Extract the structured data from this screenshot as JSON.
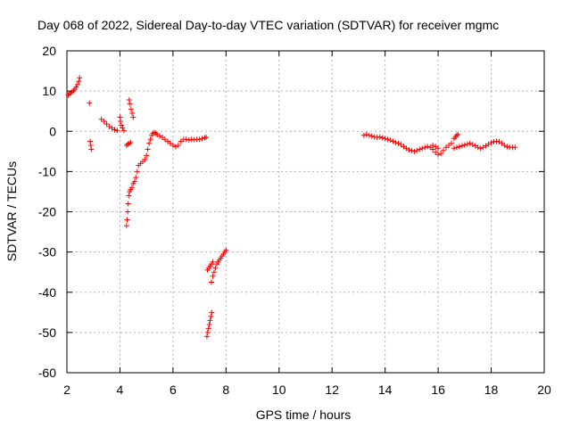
{
  "chart_data": {
    "type": "scatter",
    "title": "Day 068 of 2022, Sidereal Day-to-day VTEC variation (SDTVAR) for receiver mgmc",
    "xlabel": "GPS time / hours",
    "ylabel": "SDTVAR / TECUs",
    "xlim": [
      2,
      20
    ],
    "ylim": [
      -60,
      20
    ],
    "xticks": [
      2,
      4,
      6,
      8,
      10,
      12,
      14,
      16,
      18,
      20
    ],
    "yticks": [
      -60,
      -50,
      -40,
      -30,
      -20,
      -10,
      0,
      10,
      20
    ],
    "xtick_labels": [
      "2",
      "4",
      "6",
      "8",
      "10",
      "12",
      "14",
      "16",
      "18",
      "20"
    ],
    "ytick_labels": [
      "-60",
      "-50",
      "-40",
      "-30",
      "-20",
      "-10",
      "0",
      "10",
      "20"
    ],
    "grid": true,
    "marker": "+",
    "color": "#ff0000",
    "series": [
      {
        "name": "SDTVAR",
        "points": [
          [
            2.05,
            9.0
          ],
          [
            2.1,
            9.3
          ],
          [
            2.15,
            9.6
          ],
          [
            2.2,
            9.8
          ],
          [
            2.25,
            10.1
          ],
          [
            2.3,
            10.5
          ],
          [
            2.35,
            11.0
          ],
          [
            2.4,
            11.6
          ],
          [
            2.45,
            12.4
          ],
          [
            2.48,
            13.3
          ],
          [
            2.85,
            7.0
          ],
          [
            2.88,
            -2.5
          ],
          [
            2.9,
            -3.5
          ],
          [
            2.92,
            -4.5
          ],
          [
            3.3,
            3.0
          ],
          [
            3.4,
            2.5
          ],
          [
            3.5,
            1.8
          ],
          [
            3.6,
            1.2
          ],
          [
            3.7,
            0.8
          ],
          [
            3.8,
            0.4
          ],
          [
            3.9,
            0.2
          ],
          [
            4.0,
            3.5
          ],
          [
            4.02,
            2.5
          ],
          [
            4.05,
            1.5
          ],
          [
            4.1,
            0.8
          ],
          [
            4.15,
            0.2
          ],
          [
            4.25,
            -3.5
          ],
          [
            4.3,
            -3.2
          ],
          [
            4.35,
            -3.0
          ],
          [
            4.4,
            -2.8
          ],
          [
            4.25,
            -23.5
          ],
          [
            4.27,
            -22.0
          ],
          [
            4.29,
            -20.0
          ],
          [
            4.31,
            -18.0
          ],
          [
            4.33,
            -16.0
          ],
          [
            4.36,
            -15.0
          ],
          [
            4.4,
            -14.5
          ],
          [
            4.45,
            -14.0
          ],
          [
            4.5,
            -13.0
          ],
          [
            4.55,
            -12.5
          ],
          [
            4.6,
            -11.5
          ],
          [
            4.65,
            -10.0
          ],
          [
            4.35,
            7.8
          ],
          [
            4.38,
            6.8
          ],
          [
            4.42,
            5.5
          ],
          [
            4.46,
            4.5
          ],
          [
            4.5,
            3.5
          ],
          [
            4.7,
            -8.5
          ],
          [
            4.78,
            -8.0
          ],
          [
            4.86,
            -7.5
          ],
          [
            4.94,
            -7.0
          ],
          [
            5.0,
            -6.0
          ],
          [
            5.05,
            -4.5
          ],
          [
            5.1,
            -3.0
          ],
          [
            5.15,
            -2.0
          ],
          [
            5.2,
            -1.0
          ],
          [
            5.25,
            -0.5
          ],
          [
            5.3,
            -0.3
          ],
          [
            5.35,
            -0.5
          ],
          [
            5.4,
            -0.8
          ],
          [
            5.5,
            -1.2
          ],
          [
            5.6,
            -1.5
          ],
          [
            5.7,
            -2.0
          ],
          [
            5.8,
            -2.5
          ],
          [
            5.9,
            -3.0
          ],
          [
            6.0,
            -3.5
          ],
          [
            6.1,
            -3.8
          ],
          [
            6.2,
            -3.5
          ],
          [
            6.3,
            -2.5
          ],
          [
            6.4,
            -2.0
          ],
          [
            6.5,
            -2.0
          ],
          [
            6.6,
            -2.2
          ],
          [
            6.7,
            -2.0
          ],
          [
            6.8,
            -2.1
          ],
          [
            6.9,
            -2.0
          ],
          [
            7.0,
            -2.0
          ],
          [
            7.1,
            -1.8
          ],
          [
            7.2,
            -1.6
          ],
          [
            7.25,
            -1.5
          ],
          [
            7.28,
            -51.0
          ],
          [
            7.31,
            -50.0
          ],
          [
            7.34,
            -49.0
          ],
          [
            7.37,
            -48.0
          ],
          [
            7.4,
            -47.0
          ],
          [
            7.43,
            -46.0
          ],
          [
            7.46,
            -45.0
          ],
          [
            7.3,
            -34.5
          ],
          [
            7.35,
            -34.0
          ],
          [
            7.4,
            -33.5
          ],
          [
            7.45,
            -33.0
          ],
          [
            7.5,
            -32.5
          ],
          [
            7.45,
            -37.5
          ],
          [
            7.5,
            -36.0
          ],
          [
            7.55,
            -35.0
          ],
          [
            7.6,
            -34.0
          ],
          [
            7.65,
            -33.0
          ],
          [
            7.7,
            -32.5
          ],
          [
            7.75,
            -32.0
          ],
          [
            7.8,
            -31.5
          ],
          [
            7.85,
            -31.0
          ],
          [
            7.9,
            -30.5
          ],
          [
            7.95,
            -30.0
          ],
          [
            8.0,
            -29.5
          ],
          [
            13.2,
            -1.0
          ],
          [
            13.3,
            -0.8
          ],
          [
            13.4,
            -1.0
          ],
          [
            13.5,
            -1.2
          ],
          [
            13.6,
            -1.4
          ],
          [
            13.7,
            -1.5
          ],
          [
            13.8,
            -1.4
          ],
          [
            13.9,
            -1.6
          ],
          [
            14.0,
            -1.8
          ],
          [
            14.1,
            -2.0
          ],
          [
            14.2,
            -2.2
          ],
          [
            14.3,
            -2.5
          ],
          [
            14.4,
            -2.8
          ],
          [
            14.5,
            -3.0
          ],
          [
            14.6,
            -3.3
          ],
          [
            14.7,
            -3.8
          ],
          [
            14.8,
            -4.2
          ],
          [
            14.9,
            -4.6
          ],
          [
            15.0,
            -4.8
          ],
          [
            15.1,
            -5.0
          ],
          [
            15.2,
            -4.8
          ],
          [
            15.3,
            -4.5
          ],
          [
            15.4,
            -4.2
          ],
          [
            15.5,
            -4.0
          ],
          [
            15.6,
            -3.8
          ],
          [
            15.7,
            -4.0
          ],
          [
            15.8,
            -4.5
          ],
          [
            15.9,
            -5.2
          ],
          [
            16.0,
            -5.8
          ],
          [
            16.1,
            -5.5
          ],
          [
            16.2,
            -4.8
          ],
          [
            16.3,
            -4.0
          ],
          [
            16.4,
            -3.5
          ],
          [
            16.5,
            -3.0
          ],
          [
            15.8,
            -3.5
          ],
          [
            15.9,
            -3.8
          ],
          [
            16.0,
            -4.2
          ],
          [
            16.6,
            -1.8
          ],
          [
            16.65,
            -1.4
          ],
          [
            16.7,
            -1.0
          ],
          [
            16.75,
            -0.8
          ],
          [
            16.6,
            -4.2
          ],
          [
            16.7,
            -4.0
          ],
          [
            16.8,
            -3.8
          ],
          [
            16.9,
            -3.6
          ],
          [
            17.0,
            -3.4
          ],
          [
            17.1,
            -3.2
          ],
          [
            17.2,
            -3.0
          ],
          [
            17.3,
            -3.3
          ],
          [
            17.4,
            -3.6
          ],
          [
            17.5,
            -4.0
          ],
          [
            17.6,
            -4.2
          ],
          [
            17.7,
            -4.0
          ],
          [
            17.8,
            -3.6
          ],
          [
            17.9,
            -3.2
          ],
          [
            18.0,
            -2.8
          ],
          [
            18.1,
            -2.6
          ],
          [
            18.2,
            -2.5
          ],
          [
            18.3,
            -2.6
          ],
          [
            18.4,
            -3.0
          ],
          [
            18.5,
            -3.5
          ],
          [
            18.6,
            -3.8
          ],
          [
            18.7,
            -4.0
          ],
          [
            18.8,
            -4.0
          ],
          [
            18.9,
            -4.0
          ]
        ]
      }
    ]
  }
}
